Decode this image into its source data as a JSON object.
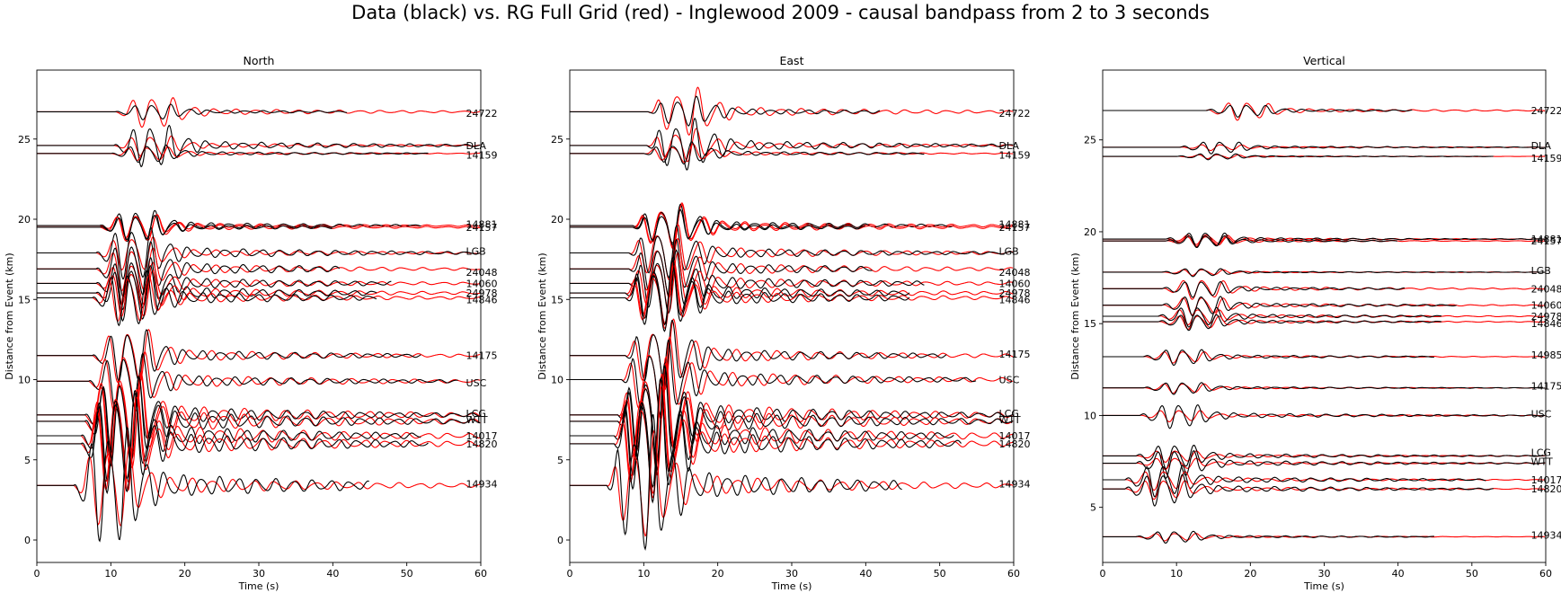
{
  "title": "Data (black) vs. RG Full Grid (red) - Inglewood 2009 - causal bandpass from 2 to 3 seconds",
  "colors": {
    "data": "#000000",
    "synthetic": "#ff0000",
    "axis": "#000000"
  },
  "chart_data": [
    {
      "type": "line",
      "title": "North",
      "xlabel": "Time (s)",
      "ylabel": "Distance from Event (km)",
      "xlim": [
        0,
        60
      ],
      "ylim": [
        -1.4,
        29.3
      ],
      "xticks": [
        0,
        10,
        20,
        30,
        40,
        50,
        60
      ],
      "yticks": [
        0,
        5,
        10,
        15,
        20,
        25
      ],
      "grid": false,
      "stations": [
        {
          "name": "24722",
          "dist": 26.7,
          "label_y": 26.6,
          "arrival": 10.6,
          "data_amp": 0.45,
          "syn_amp": 0.9,
          "data_end": 42,
          "period": 2.5
        },
        {
          "name": "DLA",
          "dist": 24.6,
          "label_y": 24.6,
          "arrival": 10.4,
          "data_amp": 1.2,
          "syn_amp": 0.6,
          "data_end": 60,
          "period": 2.5
        },
        {
          "name": "14159",
          "dist": 24.1,
          "label_y": 24.0,
          "arrival": 10.0,
          "data_amp": 0.5,
          "syn_amp": 0.4,
          "data_end": 53,
          "period": 2.5
        },
        {
          "name": "14881",
          "dist": 19.6,
          "label_y": 19.7,
          "arrival": 8.5,
          "data_amp": 0.9,
          "syn_amp": 0.7,
          "data_end": 52,
          "period": 2.5
        },
        {
          "name": "24157",
          "dist": 19.5,
          "label_y": 19.5,
          "arrival": 8.5,
          "data_amp": 0.7,
          "syn_amp": 0.8,
          "data_end": 40,
          "period": 2.5
        },
        {
          "name": "LGB",
          "dist": 17.9,
          "label_y": 18.0,
          "arrival": 8.0,
          "data_amp": 1.5,
          "syn_amp": 1.0,
          "data_end": 60,
          "period": 2.5
        },
        {
          "name": "24048",
          "dist": 16.9,
          "label_y": 16.7,
          "arrival": 8.0,
          "data_amp": 1.6,
          "syn_amp": 1.3,
          "data_end": 41,
          "period": 2.5
        },
        {
          "name": "14060",
          "dist": 16.0,
          "label_y": 16.0,
          "arrival": 8.0,
          "data_amp": 1.5,
          "syn_amp": 1.3,
          "data_end": 48,
          "period": 2.5
        },
        {
          "name": "24978",
          "dist": 15.4,
          "label_y": 15.4,
          "arrival": 8.0,
          "data_amp": 1.6,
          "syn_amp": 1.4,
          "data_end": 46,
          "period": 2.5
        },
        {
          "name": "14846",
          "dist": 15.1,
          "label_y": 15.0,
          "arrival": 7.5,
          "data_amp": 1.6,
          "syn_amp": 1.4,
          "data_end": 46,
          "period": 2.5
        },
        {
          "name": "14175",
          "dist": 11.5,
          "label_y": 11.5,
          "arrival": 7.5,
          "data_amp": 1.5,
          "syn_amp": 1.6,
          "data_end": 52,
          "period": 2.5
        },
        {
          "name": "USC",
          "dist": 9.9,
          "label_y": 9.8,
          "arrival": 7.0,
          "data_amp": 1.6,
          "syn_amp": 1.8,
          "data_end": 57,
          "period": 2.5
        },
        {
          "name": "LCG",
          "dist": 7.8,
          "label_y": 7.9,
          "arrival": 6.5,
          "data_amp": 2.2,
          "syn_amp": 2.6,
          "data_end": 60,
          "period": 2.5
        },
        {
          "name": "WTT",
          "dist": 7.4,
          "label_y": 7.5,
          "arrival": 6.5,
          "data_amp": 2.6,
          "syn_amp": 2.8,
          "data_end": 60,
          "period": 2.5
        },
        {
          "name": "14017",
          "dist": 6.5,
          "label_y": 6.5,
          "arrival": 6.0,
          "data_amp": 2.6,
          "syn_amp": 2.8,
          "data_end": 52,
          "period": 2.5
        },
        {
          "name": "14820",
          "dist": 6.0,
          "label_y": 6.0,
          "arrival": 6.0,
          "data_amp": 2.9,
          "syn_amp": 2.8,
          "data_end": 53,
          "period": 2.5
        },
        {
          "name": "14934",
          "dist": 3.4,
          "label_y": 3.5,
          "arrival": 5.0,
          "data_amp": 3.3,
          "syn_amp": 2.4,
          "data_end": 45,
          "period": 2.5
        }
      ]
    },
    {
      "type": "line",
      "title": "East",
      "xlabel": "Time (s)",
      "ylabel": "Distance from Event (km)",
      "xlim": [
        0,
        60
      ],
      "ylim": [
        -1.4,
        29.3
      ],
      "xticks": [
        0,
        10,
        20,
        30,
        40,
        50,
        60
      ],
      "yticks": [
        0,
        5,
        10,
        15,
        20,
        25
      ],
      "grid": false,
      "stations": [
        {
          "name": "24722",
          "dist": 26.7,
          "label_y": 26.6,
          "arrival": 10.6,
          "data_amp": 0.8,
          "syn_amp": 1.3,
          "data_end": 42,
          "period": 2.5
        },
        {
          "name": "DLA",
          "dist": 24.6,
          "label_y": 24.6,
          "arrival": 10.4,
          "data_amp": 1.4,
          "syn_amp": 0.9,
          "data_end": 60,
          "period": 2.5
        },
        {
          "name": "14159",
          "dist": 24.1,
          "label_y": 24.0,
          "arrival": 10.0,
          "data_amp": 0.6,
          "syn_amp": 0.5,
          "data_end": 48,
          "period": 2.5
        },
        {
          "name": "14881",
          "dist": 19.6,
          "label_y": 19.7,
          "arrival": 8.5,
          "data_amp": 1.1,
          "syn_amp": 1.2,
          "data_end": 52,
          "period": 2.5
        },
        {
          "name": "24157",
          "dist": 19.5,
          "label_y": 19.5,
          "arrival": 8.5,
          "data_amp": 0.9,
          "syn_amp": 1.2,
          "data_end": 40,
          "period": 2.5
        },
        {
          "name": "LGB",
          "dist": 17.9,
          "label_y": 18.0,
          "arrival": 8.0,
          "data_amp": 1.4,
          "syn_amp": 1.5,
          "data_end": 60,
          "period": 2.5
        },
        {
          "name": "24048",
          "dist": 16.9,
          "label_y": 16.7,
          "arrival": 8.0,
          "data_amp": 1.5,
          "syn_amp": 1.6,
          "data_end": 41,
          "period": 2.5
        },
        {
          "name": "14060",
          "dist": 16.0,
          "label_y": 16.0,
          "arrival": 8.0,
          "data_amp": 1.7,
          "syn_amp": 1.6,
          "data_end": 48,
          "period": 2.5
        },
        {
          "name": "24978",
          "dist": 15.4,
          "label_y": 15.4,
          "arrival": 7.5,
          "data_amp": 1.8,
          "syn_amp": 1.7,
          "data_end": 46,
          "period": 2.5
        },
        {
          "name": "14846",
          "dist": 15.1,
          "label_y": 15.0,
          "arrival": 7.5,
          "data_amp": 1.9,
          "syn_amp": 1.7,
          "data_end": 46,
          "period": 2.5
        },
        {
          "name": "14175",
          "dist": 11.5,
          "label_y": 11.6,
          "arrival": 7.5,
          "data_amp": 1.8,
          "syn_amp": 1.9,
          "data_end": 51,
          "period": 2.5
        },
        {
          "name": "USC",
          "dist": 10.0,
          "label_y": 10.0,
          "arrival": 7.0,
          "data_amp": 2.0,
          "syn_amp": 2.2,
          "data_end": 55,
          "period": 2.5
        },
        {
          "name": "LCG",
          "dist": 7.8,
          "label_y": 7.9,
          "arrival": 6.5,
          "data_amp": 2.6,
          "syn_amp": 3.0,
          "data_end": 60,
          "period": 2.5
        },
        {
          "name": "WTT",
          "dist": 7.4,
          "label_y": 7.5,
          "arrival": 6.5,
          "data_amp": 2.8,
          "syn_amp": 3.0,
          "data_end": 60,
          "period": 2.5
        },
        {
          "name": "14017",
          "dist": 6.5,
          "label_y": 6.5,
          "arrival": 6.0,
          "data_amp": 2.9,
          "syn_amp": 3.2,
          "data_end": 52,
          "period": 2.5
        },
        {
          "name": "14820",
          "dist": 6.0,
          "label_y": 6.0,
          "arrival": 6.0,
          "data_amp": 3.3,
          "syn_amp": 3.0,
          "data_end": 53,
          "period": 2.5
        },
        {
          "name": "14934",
          "dist": 3.4,
          "label_y": 3.5,
          "arrival": 5.0,
          "data_amp": 3.6,
          "syn_amp": 2.8,
          "data_end": 45,
          "period": 2.5
        }
      ]
    },
    {
      "type": "line",
      "title": "Vertical",
      "xlabel": "Time (s)",
      "ylabel": "Distance from Event (km)",
      "xlim": [
        0,
        60
      ],
      "ylim": [
        2.0,
        28.8
      ],
      "xticks": [
        0,
        10,
        20,
        30,
        40,
        50,
        60
      ],
      "yticks": [
        5,
        10,
        15,
        20,
        25
      ],
      "grid": false,
      "stations": [
        {
          "name": "24722",
          "dist": 26.6,
          "label_y": 26.6,
          "arrival": 14.0,
          "data_amp": 0.3,
          "syn_amp": 0.45,
          "data_end": 42,
          "period": 2.5
        },
        {
          "name": "DLA",
          "dist": 24.6,
          "label_y": 24.7,
          "arrival": 10.4,
          "data_amp": 0.3,
          "syn_amp": 0.15,
          "data_end": 60,
          "period": 2.5
        },
        {
          "name": "14159",
          "dist": 24.1,
          "label_y": 24.0,
          "arrival": 10.0,
          "data_amp": 0.15,
          "syn_amp": 0.1,
          "data_end": 53,
          "period": 2.5
        },
        {
          "name": "14881",
          "dist": 19.6,
          "label_y": 19.6,
          "arrival": 8.5,
          "data_amp": 0.35,
          "syn_amp": 0.25,
          "data_end": 60,
          "period": 2.5
        },
        {
          "name": "24157",
          "dist": 19.5,
          "label_y": 19.5,
          "arrival": 8.5,
          "data_amp": 0.3,
          "syn_amp": 0.25,
          "data_end": 40,
          "period": 2.5
        },
        {
          "name": "LGB",
          "dist": 17.8,
          "label_y": 17.9,
          "arrival": 8.0,
          "data_amp": 0.2,
          "syn_amp": 0.15,
          "data_end": 60,
          "period": 2.5
        },
        {
          "name": "24048",
          "dist": 16.9,
          "label_y": 16.9,
          "arrival": 8.0,
          "data_amp": 0.4,
          "syn_amp": 0.5,
          "data_end": 41,
          "period": 2.5
        },
        {
          "name": "14060",
          "dist": 16.0,
          "label_y": 16.0,
          "arrival": 8.0,
          "data_amp": 0.5,
          "syn_amp": 0.45,
          "data_end": 48,
          "period": 2.5
        },
        {
          "name": "24978",
          "dist": 15.4,
          "label_y": 15.4,
          "arrival": 7.5,
          "data_amp": 0.5,
          "syn_amp": 0.4,
          "data_end": 46,
          "period": 2.5
        },
        {
          "name": "14846",
          "dist": 15.1,
          "label_y": 15.0,
          "arrival": 7.5,
          "data_amp": 0.4,
          "syn_amp": 0.35,
          "data_end": 46,
          "period": 2.5
        },
        {
          "name": "14985",
          "dist": 13.2,
          "label_y": 13.3,
          "arrival": 5.5,
          "data_amp": 0.4,
          "syn_amp": 0.3,
          "data_end": 45,
          "period": 2.5
        },
        {
          "name": "14175",
          "dist": 11.5,
          "label_y": 11.6,
          "arrival": 5.5,
          "data_amp": 0.3,
          "syn_amp": 0.25,
          "data_end": 60,
          "period": 2.5
        },
        {
          "name": "USC",
          "dist": 10.0,
          "label_y": 10.1,
          "arrival": 5.0,
          "data_amp": 0.6,
          "syn_amp": 0.3,
          "data_end": 60,
          "period": 2.5
        },
        {
          "name": "LCG",
          "dist": 7.8,
          "label_y": 8.0,
          "arrival": 4.5,
          "data_amp": 0.6,
          "syn_amp": 0.3,
          "data_end": 60,
          "period": 2.5
        },
        {
          "name": "WTT",
          "dist": 7.4,
          "label_y": 7.5,
          "arrival": 4.5,
          "data_amp": 0.7,
          "syn_amp": 0.3,
          "data_end": 60,
          "period": 2.5
        },
        {
          "name": "14017",
          "dist": 6.5,
          "label_y": 6.5,
          "arrival": 3.0,
          "data_amp": 0.8,
          "syn_amp": 0.5,
          "data_end": 52,
          "period": 2.5
        },
        {
          "name": "14820",
          "dist": 6.0,
          "label_y": 6.0,
          "arrival": 3.0,
          "data_amp": 0.8,
          "syn_amp": 0.5,
          "data_end": 53,
          "period": 2.5
        },
        {
          "name": "14934",
          "dist": 3.4,
          "label_y": 3.5,
          "arrival": 4.5,
          "data_amp": 0.3,
          "syn_amp": 0.2,
          "data_end": 45,
          "period": 2.5
        }
      ]
    }
  ]
}
